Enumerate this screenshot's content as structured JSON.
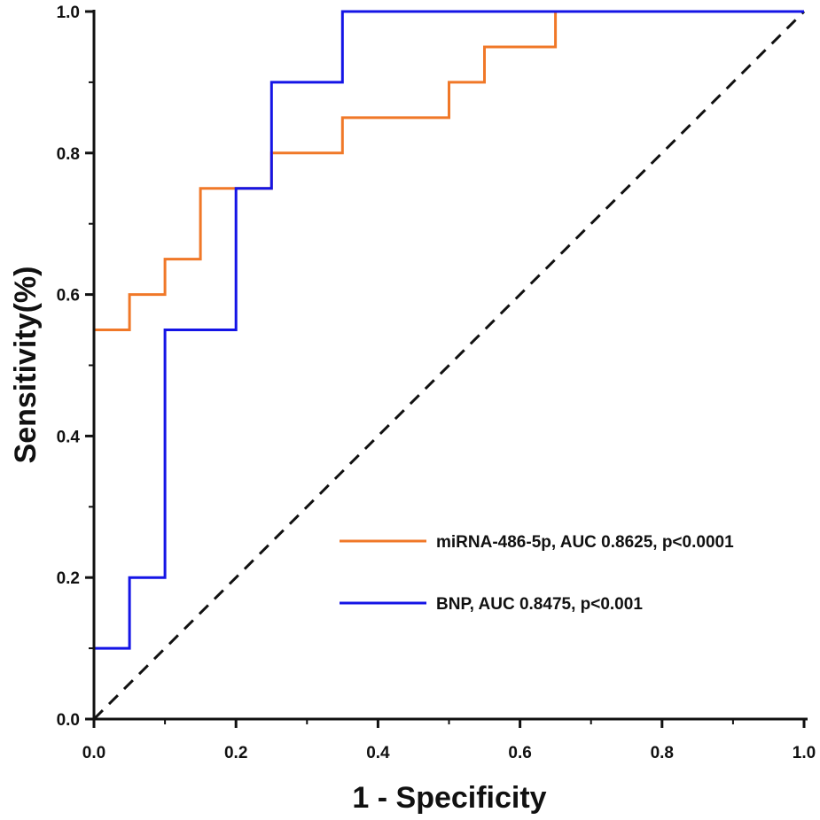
{
  "chart_data": {
    "type": "line",
    "title": "",
    "xlabel": "1 - Specificity",
    "ylabel": "Sensitivity(%)",
    "xlim": [
      0,
      1
    ],
    "ylim": [
      0,
      1
    ],
    "x_ticks": [
      "0.0",
      "0.2",
      "0.4",
      "0.6",
      "0.8",
      "1.0"
    ],
    "y_ticks": [
      "0.0",
      "0.2",
      "0.4",
      "0.6",
      "0.8",
      "1.0"
    ],
    "grid": false,
    "legend_position": "lower-right",
    "series": [
      {
        "name": "miRNA-486-5p, AUC 0.8625, p<0.0001",
        "color": "#F07828",
        "style": "solid",
        "x": [
          0,
          0,
          0,
          0.05,
          0.05,
          0.1,
          0.1,
          0.15,
          0.15,
          0.25,
          0.25,
          0.35,
          0.35,
          0.5,
          0.5,
          0.55,
          0.55,
          0.65,
          0.65
        ],
        "y": [
          0.1,
          0.55,
          0.55,
          0.55,
          0.6,
          0.6,
          0.65,
          0.65,
          0.75,
          0.75,
          0.8,
          0.8,
          0.85,
          0.85,
          0.9,
          0.9,
          0.95,
          0.95,
          1.0
        ]
      },
      {
        "name": "BNP, AUC 0.8475, p<0.001",
        "color": "#1414E6",
        "style": "solid",
        "x": [
          0,
          0,
          0.05,
          0.05,
          0.1,
          0.1,
          0.2,
          0.2,
          0.25,
          0.25,
          0.35,
          0.35,
          1.0
        ],
        "y": [
          0,
          0.1,
          0.1,
          0.2,
          0.2,
          0.55,
          0.55,
          0.75,
          0.75,
          0.9,
          0.9,
          1.0,
          1.0
        ]
      },
      {
        "name": "reference",
        "color": "#111111",
        "style": "dashed",
        "x": [
          0,
          1
        ],
        "y": [
          0,
          1
        ]
      }
    ]
  }
}
